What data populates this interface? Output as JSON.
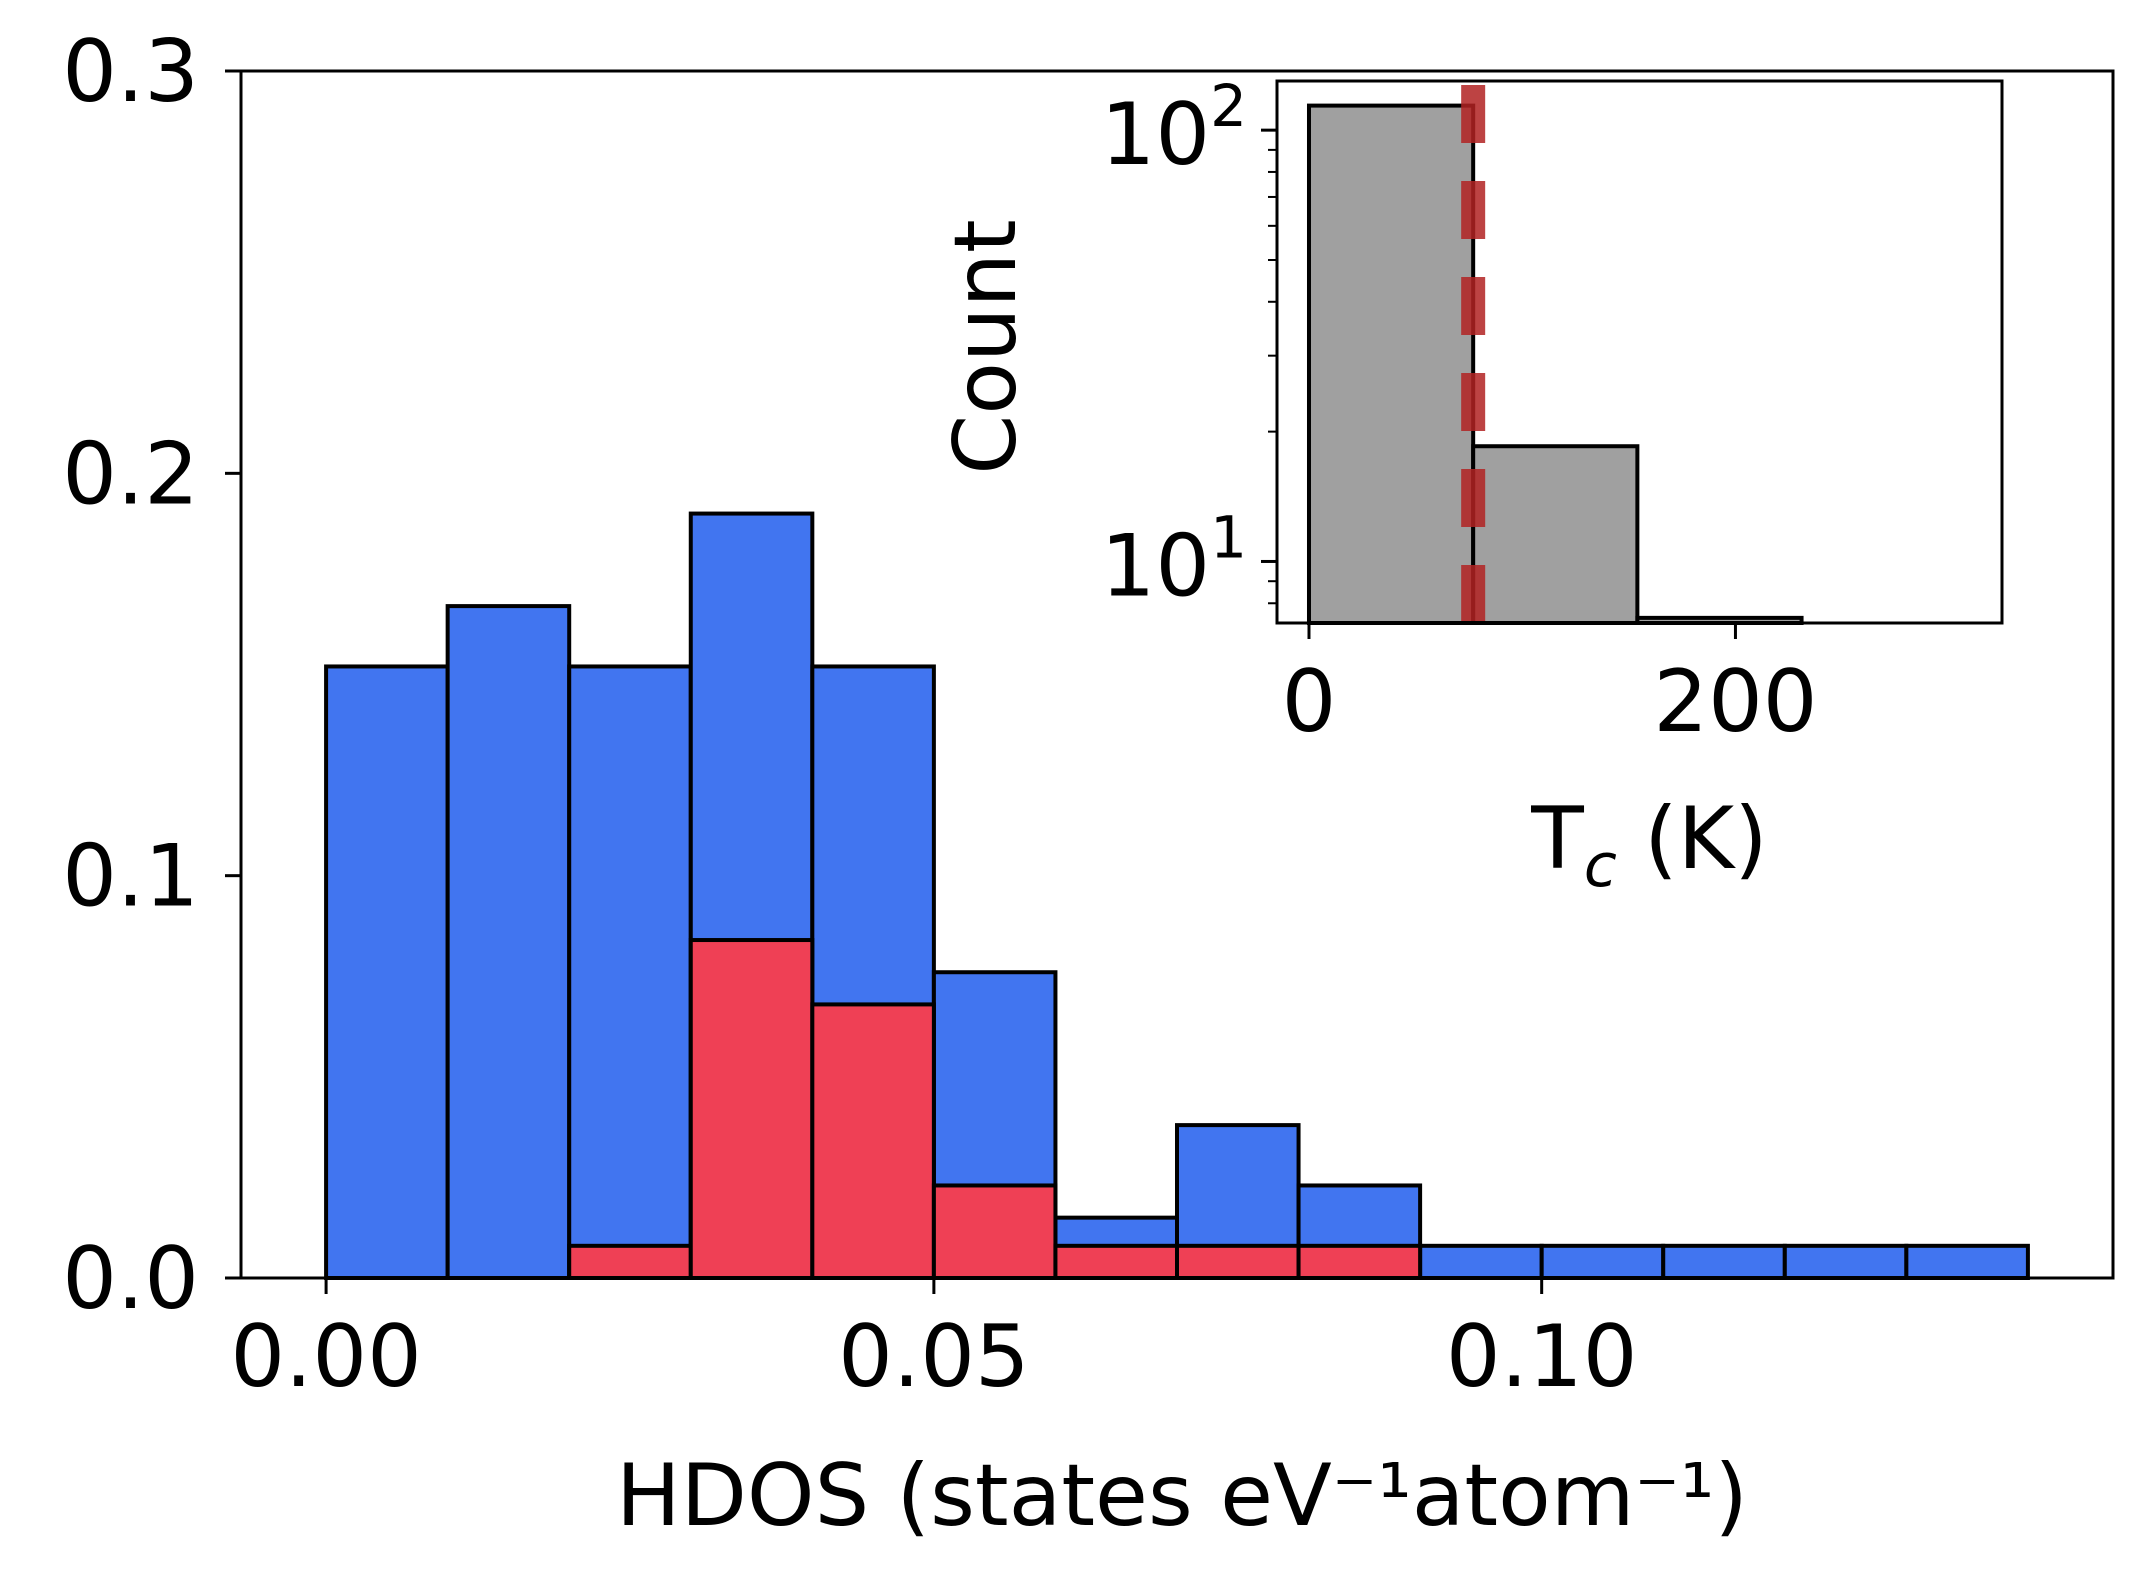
{
  "chart_data": [
    {
      "type": "bar",
      "role": "main",
      "stacked": false,
      "bin_width": 0.01,
      "bin_starts": [
        0.0,
        0.01,
        0.02,
        0.03,
        0.04,
        0.05,
        0.06,
        0.07,
        0.08,
        0.09,
        0.1,
        0.11,
        0.12,
        0.13
      ],
      "series": [
        {
          "color": "#4175F0",
          "values": [
            0.152,
            0.167,
            0.152,
            0.19,
            0.152,
            0.076,
            0.015,
            0.038,
            0.023,
            0.008,
            0.008,
            0.008,
            0.008,
            0.008
          ]
        },
        {
          "color": "#EF4055",
          "values": [
            0.0,
            0.0,
            0.008,
            0.084,
            0.068,
            0.023,
            0.008,
            0.008,
            0.008,
            0.0,
            0.0,
            0.0,
            0.0,
            0.0
          ]
        }
      ],
      "xlabel": "HDOS (states eV⁻¹atom⁻¹)",
      "ylabel": "",
      "xlim": [
        -0.007,
        0.147
      ],
      "ylim": [
        0.0,
        0.3
      ],
      "x_ticks": [
        "0.00",
        "0.05",
        "0.10"
      ],
      "x_tick_values": [
        0.0,
        0.05,
        0.1
      ],
      "y_ticks": [
        "0.0",
        "0.1",
        "0.2",
        "0.3"
      ],
      "y_tick_values": [
        0.0,
        0.1,
        0.2,
        0.3
      ],
      "grid": false
    },
    {
      "type": "bar",
      "role": "inset",
      "bin_starts": [
        0,
        77,
        154
      ],
      "bin_width": 77,
      "values": [
        114,
        18.5,
        7.4
      ],
      "bar_color": "#A0A0A0",
      "reference_line": {
        "x": 77,
        "style": "dashed",
        "color": "#B22222"
      },
      "xlabel": "T",
      "xlabel_sub": "c",
      "xlabel_unit": " (K)",
      "ylabel": "Count",
      "xlim": [
        -15,
        325
      ],
      "ylim_log": [
        7.2,
        130
      ],
      "log_y": true,
      "x_ticks": [
        "0",
        "200"
      ],
      "x_tick_values": [
        0,
        200
      ],
      "y_ticks": [
        {
          "base": "10",
          "exp": "1",
          "value": 10
        },
        {
          "base": "10",
          "exp": "2",
          "value": 100
        }
      ]
    }
  ]
}
